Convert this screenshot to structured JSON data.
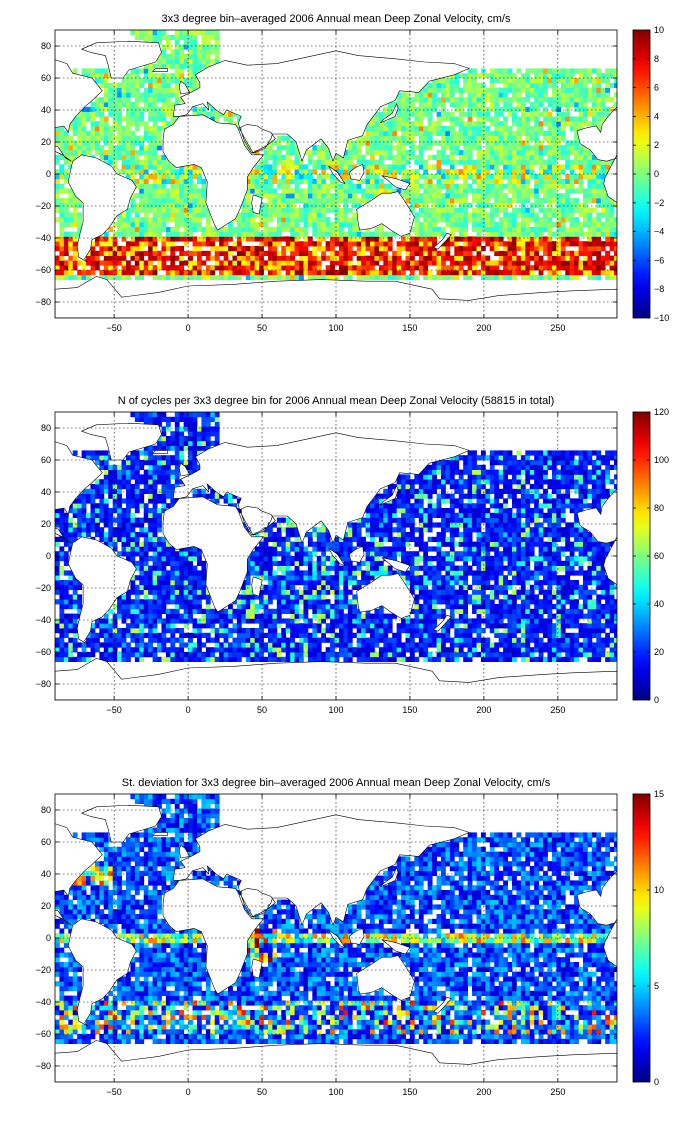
{
  "chart_data": [
    {
      "type": "heatmap",
      "title": "3x3 degree bin–averaged 2006 Annual mean Deep Zonal Velocity, cm/s",
      "xlabel": "",
      "ylabel": "",
      "xlim": [
        -90,
        290
      ],
      "ylim": [
        -90,
        90
      ],
      "xticks": [
        -50,
        0,
        50,
        100,
        150,
        200,
        250
      ],
      "yticks": [
        80,
        60,
        40,
        20,
        0,
        -20,
        -40,
        -60,
        -80
      ],
      "colorbar": {
        "min": -10,
        "max": 10,
        "ticks": [
          10,
          8,
          6,
          4,
          2,
          0,
          -2,
          -4,
          -6,
          -8,
          -10
        ]
      },
      "grid": true,
      "colormap": "jet",
      "field": "velocity"
    },
    {
      "type": "heatmap",
      "title": "N of cycles per 3x3 degree bin for 2006 Annual mean Deep Zonal Velocity (58815 in total)",
      "xlabel": "",
      "ylabel": "",
      "xlim": [
        -90,
        290
      ],
      "ylim": [
        -90,
        90
      ],
      "xticks": [
        -50,
        0,
        50,
        100,
        150,
        200,
        250
      ],
      "yticks": [
        80,
        60,
        40,
        20,
        0,
        -20,
        -40,
        -60,
        -80
      ],
      "colorbar": {
        "min": 0,
        "max": 120,
        "ticks": [
          120,
          100,
          80,
          60,
          40,
          20,
          0
        ]
      },
      "grid": true,
      "colormap": "jet",
      "field": "count"
    },
    {
      "type": "heatmap",
      "title": "St. deviation for 3x3 degree bin–averaged 2006 Annual mean Deep Zonal Velocity, cm/s",
      "xlabel": "",
      "ylabel": "",
      "xlim": [
        -90,
        290
      ],
      "ylim": [
        -90,
        90
      ],
      "xticks": [
        -50,
        0,
        50,
        100,
        150,
        200,
        250
      ],
      "yticks": [
        80,
        60,
        40,
        20,
        0,
        -20,
        -40,
        -60,
        -80
      ],
      "colorbar": {
        "min": 0,
        "max": 15,
        "ticks": [
          15,
          10,
          5,
          0
        ]
      },
      "grid": true,
      "colormap": "jet",
      "field": "stdev"
    }
  ]
}
